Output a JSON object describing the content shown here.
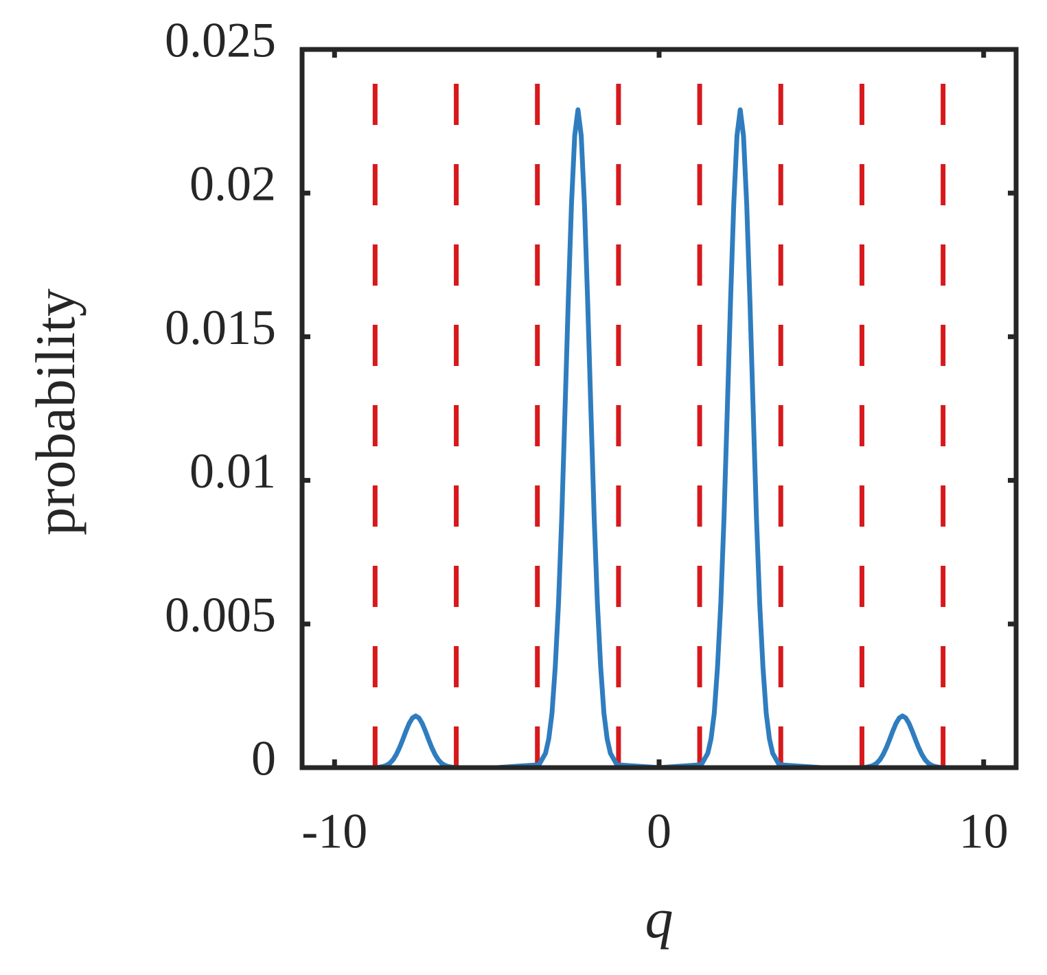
{
  "chart_data": {
    "type": "line",
    "xlabel": "q",
    "ylabel": "probability",
    "x": [
      -11,
      -8.7,
      -8.5,
      -8.4,
      -8.3,
      -8.2,
      -8.1,
      -8.0,
      -7.9,
      -7.8,
      -7.7,
      -7.6,
      -7.5,
      -7.4,
      -7.3,
      -7.2,
      -7.1,
      -7.0,
      -6.9,
      -6.8,
      -6.7,
      -6.6,
      -6.5,
      -6.3,
      -5,
      -3.7,
      -3.5,
      -3.4,
      -3.3,
      -3.2,
      -3.1,
      -3.0,
      -2.9,
      -2.8,
      -2.7,
      -2.6,
      -2.5,
      -2.4,
      -2.3,
      -2.2,
      -2.1,
      -2.0,
      -1.9,
      -1.8,
      -1.7,
      -1.6,
      -1.5,
      -1.3,
      0,
      1.3,
      1.5,
      1.6,
      1.7,
      1.8,
      1.9,
      2.0,
      2.1,
      2.2,
      2.3,
      2.4,
      2.5,
      2.6,
      2.7,
      2.8,
      2.9,
      3.0,
      3.1,
      3.2,
      3.3,
      3.4,
      3.5,
      3.7,
      5,
      6.3,
      6.5,
      6.6,
      6.7,
      6.8,
      6.9,
      7.0,
      7.1,
      7.2,
      7.3,
      7.4,
      7.5,
      7.6,
      7.7,
      7.8,
      7.9,
      8.0,
      8.1,
      8.2,
      8.3,
      8.4,
      8.5,
      8.7,
      11
    ],
    "values": [
      0,
      0,
      4e-05,
      8e-05,
      0.00015,
      0.00027,
      0.00045,
      0.00069,
      0.00097,
      0.00127,
      0.00154,
      0.00173,
      0.0018,
      0.00173,
      0.00154,
      0.00127,
      0.00097,
      0.00069,
      0.00045,
      0.00027,
      0.00015,
      8e-05,
      4e-05,
      0,
      0,
      0.0001,
      0.0005,
      0.001,
      0.0019,
      0.0035,
      0.0057,
      0.0087,
      0.0124,
      0.0162,
      0.0196,
      0.022,
      0.0229,
      0.022,
      0.0196,
      0.0162,
      0.0124,
      0.0087,
      0.0057,
      0.0035,
      0.0019,
      0.001,
      0.0005,
      0.0001,
      0,
      0.0001,
      0.0005,
      0.001,
      0.0019,
      0.0035,
      0.0057,
      0.0087,
      0.0124,
      0.0162,
      0.0196,
      0.022,
      0.0229,
      0.022,
      0.0196,
      0.0162,
      0.0124,
      0.0087,
      0.0057,
      0.0035,
      0.0019,
      0.001,
      0.0005,
      0.0001,
      0,
      0,
      4e-05,
      8e-05,
      0.00015,
      0.00027,
      0.00045,
      0.00069,
      0.00097,
      0.00127,
      0.00154,
      0.00173,
      0.0018,
      0.00173,
      0.00154,
      0.00127,
      0.00097,
      0.00069,
      0.00045,
      0.00027,
      0.00015,
      8e-05,
      4e-05,
      0,
      0
    ],
    "color": "#2f7dbf",
    "vlines": [
      -8.75,
      -6.25,
      -3.75,
      -1.25,
      1.25,
      3.75,
      6.25,
      8.75
    ],
    "vline_color": "#d7191c",
    "xlim": [
      -11,
      11
    ],
    "xticks": [
      -10,
      0,
      10
    ],
    "ylim": [
      0,
      0.025
    ],
    "yticks": [
      0,
      0.005,
      0.01,
      0.015,
      0.02,
      0.025
    ]
  }
}
